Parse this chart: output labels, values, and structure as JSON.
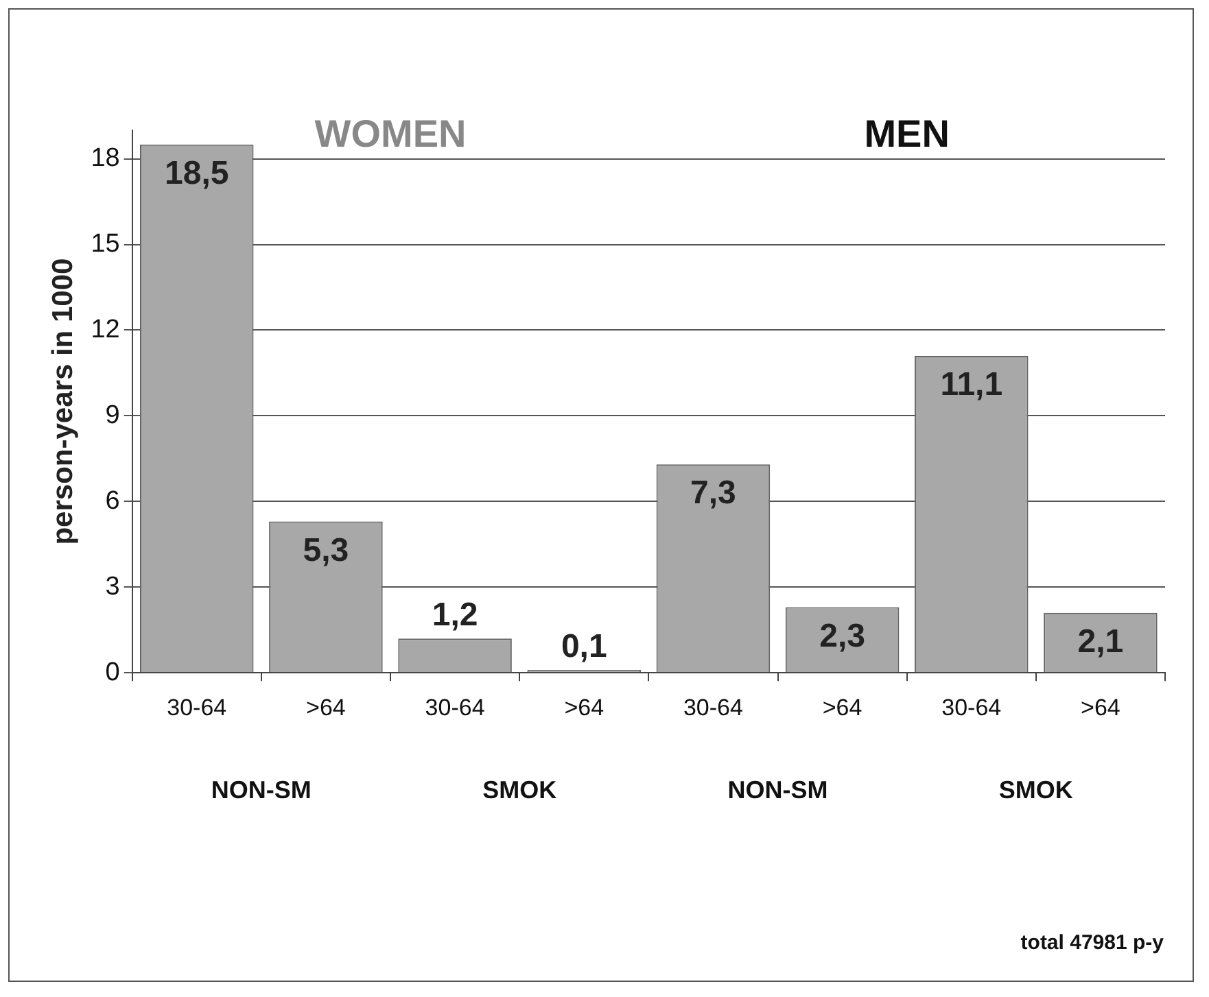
{
  "chart_data": {
    "type": "bar",
    "ylabel": "person-years in 1000",
    "categories": [
      "30-64",
      ">64",
      "30-64",
      ">64",
      "30-64",
      ">64",
      "30-64",
      ">64"
    ],
    "values": [
      18.5,
      5.3,
      1.2,
      0.1,
      7.3,
      2.3,
      11.1,
      2.1
    ],
    "value_labels": [
      "18,5",
      "5,3",
      "1,2",
      "0,1",
      "7,3",
      "2,3",
      "11,1",
      "2,1"
    ],
    "color": "#a8a8a8",
    "ylim": [
      0,
      19
    ],
    "yticks": [
      0,
      3,
      6,
      9,
      12,
      15,
      18
    ],
    "grid": "y",
    "annotations": [
      "WOMEN",
      "MEN",
      "NON-SM",
      "SMOK",
      "NON-SM",
      "SMOK",
      "total 47981 p-y"
    ]
  }
}
